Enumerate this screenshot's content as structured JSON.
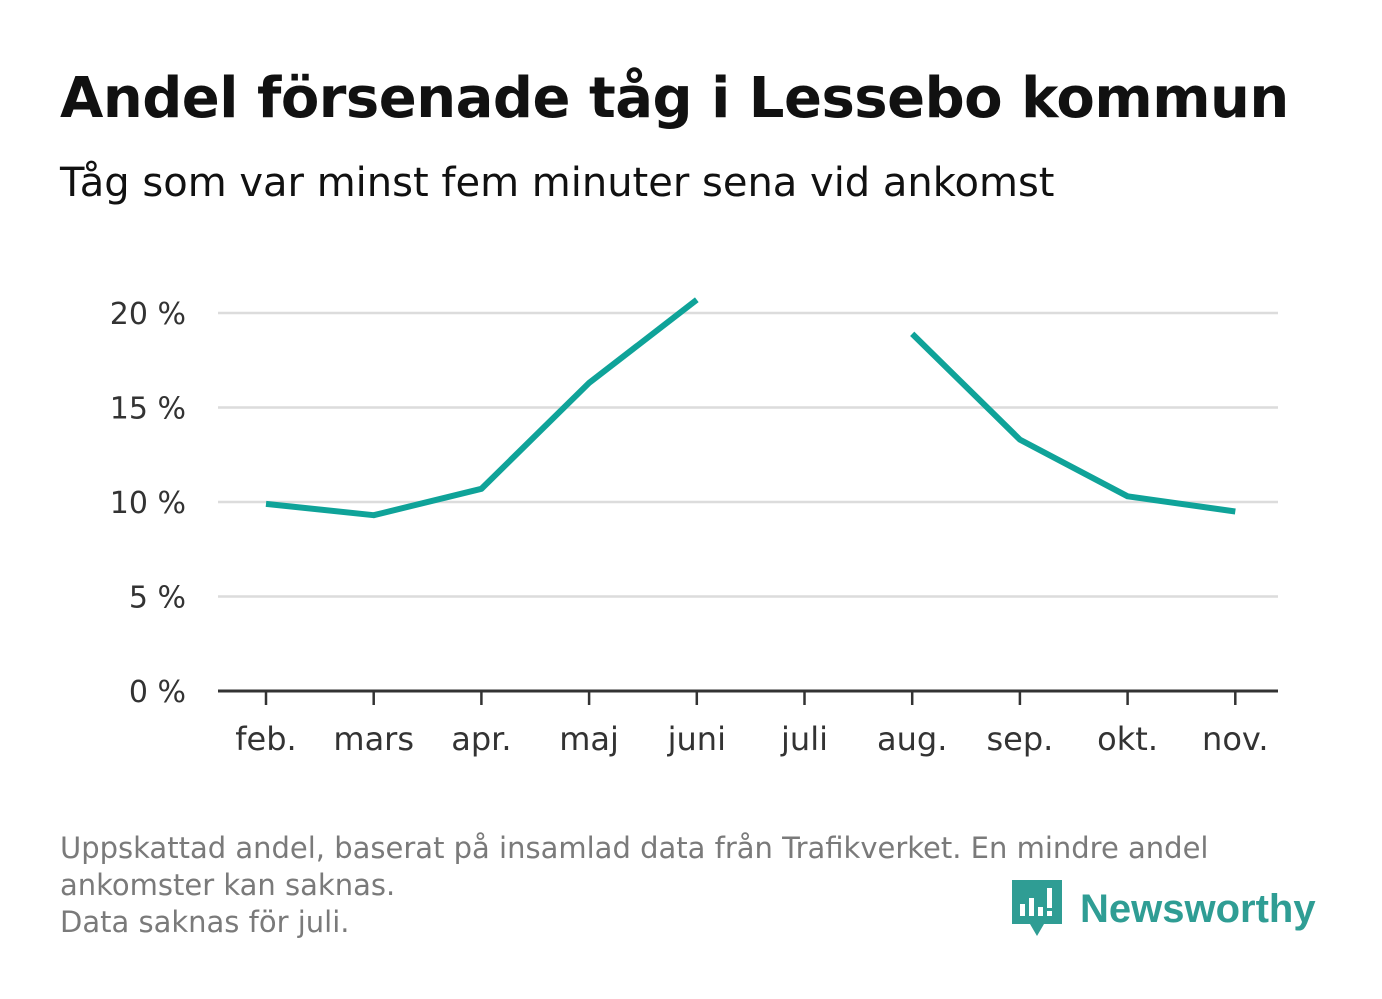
{
  "title": "Andel försenade tåg i Lessebo kommun",
  "subtitle": "Tåg som var minst fem minuter sena vid ankomst",
  "footnote": {
    "line1": "Uppskattad andel, baserat på insamlad data från Trafikverket. En mindre andel",
    "line2": "ankomster kan saknas.",
    "line3": "Data saknas för juli."
  },
  "brand": {
    "name": "Newsworthy",
    "icon": "bar-chart-speech-bubble-icon",
    "color": "#2f9d94"
  },
  "chart_data": {
    "type": "line",
    "categories": [
      "feb.",
      "mars",
      "apr.",
      "maj",
      "juni",
      "juli",
      "aug.",
      "sep.",
      "okt.",
      "nov."
    ],
    "series": [
      {
        "values": [
          9.9,
          9.3,
          10.7,
          16.3,
          20.7,
          null,
          18.9,
          13.3,
          10.3,
          9.5
        ],
        "color": "#0fa399"
      }
    ],
    "yticks": [
      0,
      5,
      10,
      15,
      20
    ],
    "ytick_labels": [
      "0 %",
      "5 %",
      "10 %",
      "15 %",
      "20 %"
    ],
    "ylim": [
      0,
      20
    ],
    "grid": "horizontal",
    "legend": "none",
    "xlabel": "",
    "ylabel": ""
  }
}
